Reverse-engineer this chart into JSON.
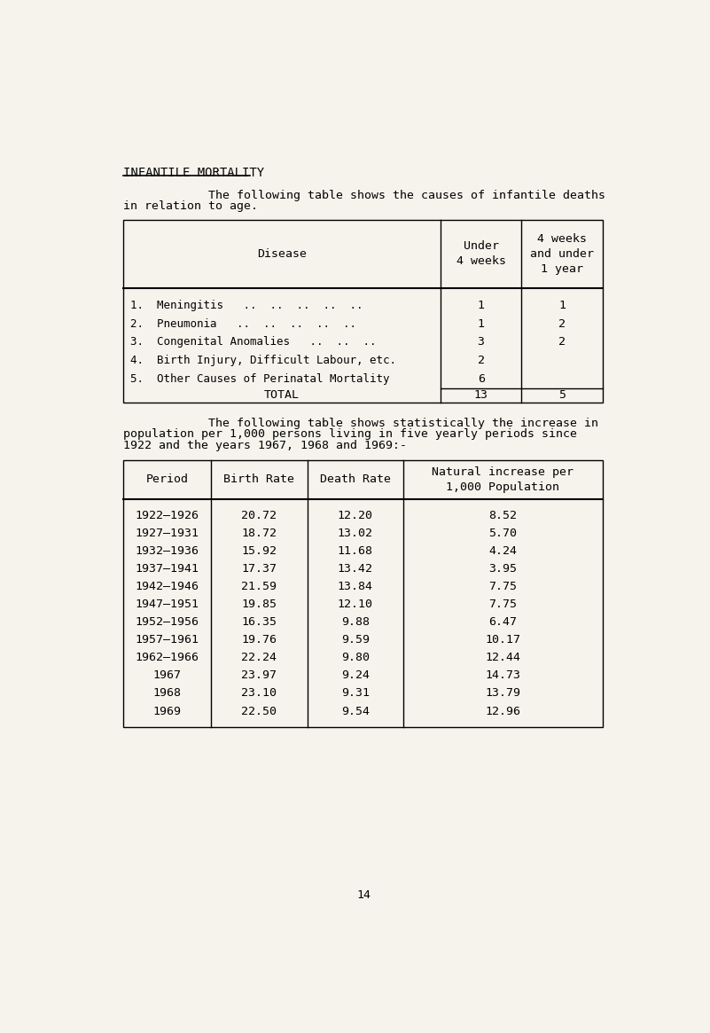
{
  "bg_color": "#f5f3ec",
  "title": "INFANTILE MORTALITY",
  "para1_indent": "            The following table shows the causes of infantile deaths",
  "para1_line2": "in relation to age.",
  "table1": {
    "rows": [
      [
        "1.  Meningitis   ..  ..  ..  ..  ..",
        "1",
        "1"
      ],
      [
        "2.  Pneumonia   ..  ..  ..  ..  ..",
        "1",
        "2"
      ],
      [
        "3.  Congenital Anomalies   ..  ..  ..",
        "3",
        "2"
      ],
      [
        "4.  Birth Injury, Difficult Labour, etc.",
        "2",
        ""
      ],
      [
        "5.  Other Causes of Perinatal Mortality",
        "6",
        ""
      ]
    ],
    "total_row": [
      "TOTAL",
      "13",
      "5"
    ]
  },
  "para2_line1": "            The following table shows statistically the increase in",
  "para2_line2": "population per 1,000 persons living in five yearly periods since",
  "para2_line3": "1922 and the years 1967, 1968 and 1969:-",
  "table2": {
    "col_headers": [
      "Period",
      "Birth Rate",
      "Death Rate",
      "Natural increase per\n1,000 Population"
    ],
    "rows": [
      [
        "1922–1926",
        "20.72",
        "12.20",
        "8.52"
      ],
      [
        "1927–1931",
        "18.72",
        "13.02",
        "5.70"
      ],
      [
        "1932–1936",
        "15.92",
        "11.68",
        "4.24"
      ],
      [
        "1937–1941",
        "17.37",
        "13.42",
        "3.95"
      ],
      [
        "1942–1946",
        "21.59",
        "13.84",
        "7.75"
      ],
      [
        "1947–1951",
        "19.85",
        "12.10",
        "7.75"
      ],
      [
        "1952–1956",
        "16.35",
        "9.88",
        "6.47"
      ],
      [
        "1957–1961",
        "19.76",
        "9.59",
        "10.17"
      ],
      [
        "1962–1966",
        "22.24",
        "9.80",
        "12.44"
      ],
      [
        "1967",
        "23.97",
        "9.24",
        "14.73"
      ],
      [
        "1968",
        "23.10",
        "9.31",
        "13.79"
      ],
      [
        "1969",
        "22.50",
        "9.54",
        "12.96"
      ]
    ]
  },
  "page_number": "14",
  "fs": 9.5
}
